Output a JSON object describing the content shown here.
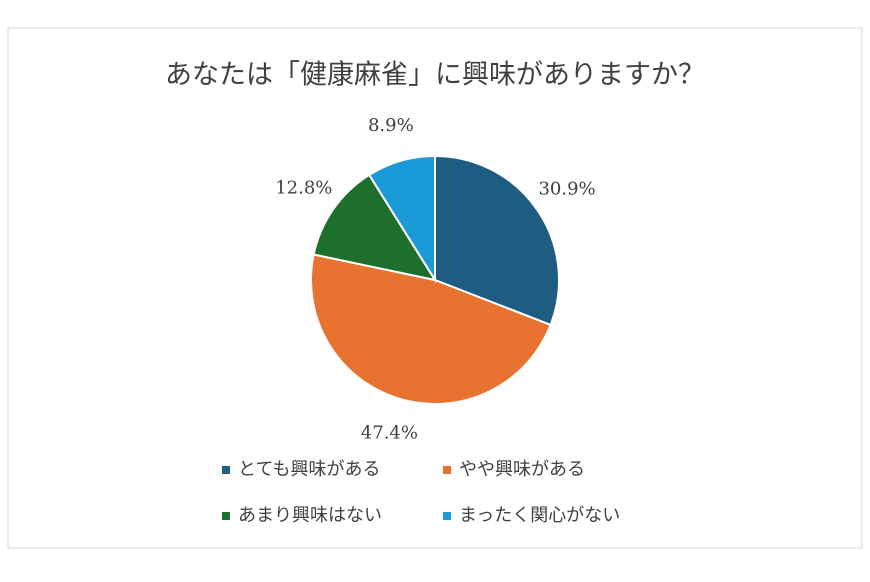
{
  "chart_data": {
    "type": "pie",
    "title": "あなたは「健康麻雀」に興味がありますか？",
    "categories": [
      "とても興味がある",
      "やや興味がある",
      "あまり興味はない",
      "まったく関心がない"
    ],
    "values": [
      30.9,
      47.4,
      12.8,
      8.9
    ],
    "value_labels": [
      "30.9%",
      "47.4%",
      "12.8%",
      "8.9%"
    ],
    "colors": [
      "#1f5c82",
      "#e87230",
      "#1e6e2c",
      "#1a9ad6"
    ],
    "legend": "bottom"
  }
}
